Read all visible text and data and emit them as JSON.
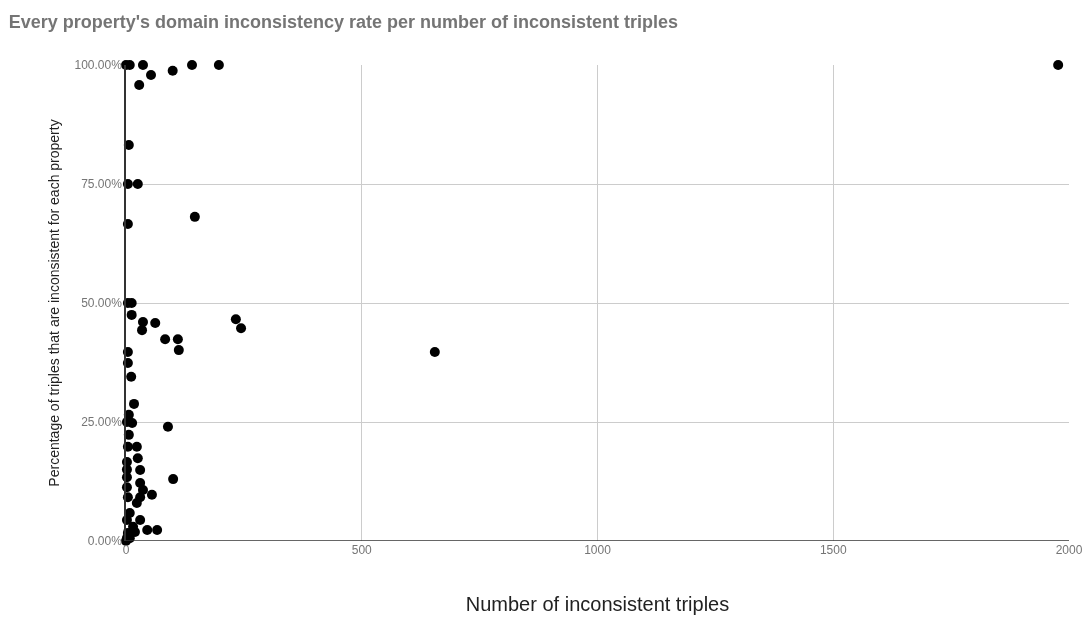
{
  "chart_data": {
    "type": "scatter",
    "title": "Every property's domain inconsistency rate per number of inconsistent triples",
    "xlabel": "Number of inconsistent triples",
    "ylabel": "Percentage of triples that are inconsistent for each property",
    "x": [
      0,
      8,
      36,
      140,
      197,
      1977,
      28,
      53,
      99,
      6,
      4,
      25,
      4,
      146,
      4,
      12,
      12,
      36,
      62,
      34,
      83,
      110,
      112,
      233,
      244,
      4,
      4,
      11,
      17,
      6,
      2,
      13,
      89,
      6,
      4,
      23,
      25,
      2,
      30,
      2,
      100,
      2,
      30,
      2,
      36,
      55,
      4,
      30,
      23,
      8,
      2,
      30,
      15,
      45,
      66,
      4,
      2,
      8,
      19,
      0,
      655
    ],
    "values": [
      100,
      100,
      100,
      100,
      100,
      100,
      95.8,
      97.9,
      98.8,
      83.2,
      75,
      75,
      66.6,
      68.1,
      50,
      50,
      47.5,
      46,
      45.8,
      44.3,
      42.4,
      42.4,
      40.1,
      46.6,
      44.7,
      39.7,
      37.4,
      34.5,
      28.8,
      26.5,
      25,
      24.8,
      24,
      22.3,
      19.8,
      19.8,
      17.4,
      16.6,
      14.9,
      15,
      13,
      13.4,
      12.2,
      11.3,
      10.7,
      9.7,
      9.2,
      9.2,
      8,
      5.9,
      4.4,
      4.4,
      3,
      2.3,
      2.3,
      1.7,
      0.6,
      0.6,
      1.9,
      0,
      39.7
    ],
    "color": "#000000",
    "marker": "circle",
    "grid": true,
    "xlim": [
      0,
      2000
    ],
    "xticks": [
      0,
      500,
      1000,
      1500,
      2000
    ],
    "ylim": [
      0,
      100
    ],
    "yticks": [
      {
        "value": 0,
        "label": "0.00%"
      },
      {
        "value": 25,
        "label": "25.00%"
      },
      {
        "value": 50,
        "label": "50.00%"
      },
      {
        "value": 75,
        "label": "75.00%"
      },
      {
        "value": 100,
        "label": "100.00%"
      }
    ]
  }
}
